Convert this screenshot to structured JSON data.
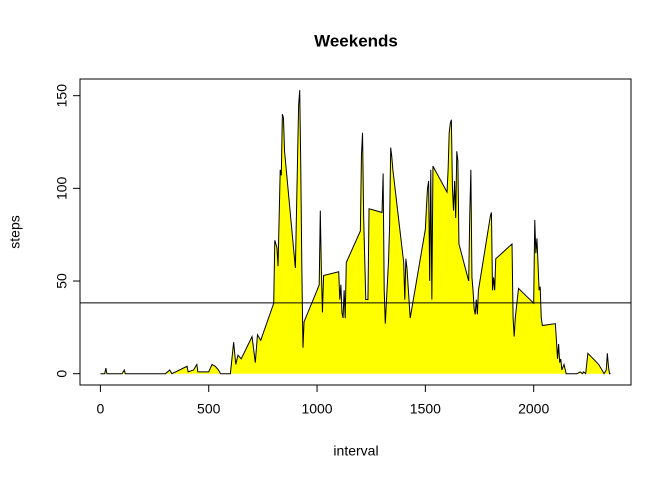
{
  "chart_data": {
    "type": "area",
    "title": "Weekends",
    "x_label": "interval",
    "y_label": "steps",
    "color": "#ffff00",
    "line_color": "#000000",
    "x": [
      0,
      5,
      10,
      15,
      20,
      25,
      30,
      100,
      105,
      110,
      115,
      200,
      300,
      320,
      330,
      400,
      405,
      430,
      445,
      450,
      500,
      515,
      530,
      545,
      555,
      600,
      615,
      625,
      635,
      650,
      700,
      715,
      725,
      740,
      800,
      805,
      815,
      820,
      830,
      835,
      840,
      845,
      850,
      900,
      915,
      920,
      925,
      930,
      935,
      940,
      1000,
      1010,
      1015,
      1020,
      1025,
      1030,
      1100,
      1105,
      1110,
      1115,
      1120,
      1125,
      1130,
      1135,
      1200,
      1205,
      1210,
      1215,
      1225,
      1235,
      1240,
      1300,
      1305,
      1310,
      1315,
      1330,
      1335,
      1340,
      1345,
      1350,
      1400,
      1405,
      1410,
      1415,
      1430,
      1500,
      1505,
      1510,
      1515,
      1520,
      1525,
      1530,
      1535,
      1600,
      1605,
      1610,
      1615,
      1620,
      1625,
      1630,
      1635,
      1640,
      1645,
      1650,
      1655,
      1700,
      1705,
      1710,
      1715,
      1720,
      1725,
      1730,
      1735,
      1740,
      1745,
      1800,
      1805,
      1810,
      1815,
      1820,
      1825,
      1900,
      1905,
      1910,
      1915,
      1930,
      2000,
      2005,
      2010,
      2015,
      2025,
      2030,
      2035,
      2040,
      2100,
      2105,
      2110,
      2115,
      2120,
      2125,
      2130,
      2140,
      2150,
      2200,
      2215,
      2225,
      2230,
      2240,
      2250,
      2300,
      2325,
      2335,
      2340,
      2345,
      2350,
      2355
    ],
    "values": [
      0,
      0,
      0,
      0,
      0,
      3,
      0,
      0,
      1,
      2,
      0,
      0,
      0,
      2,
      0,
      4,
      1,
      2,
      5,
      1,
      1,
      5,
      4,
      2,
      0,
      0,
      17,
      5,
      10,
      8,
      20,
      6,
      21,
      18,
      38,
      72,
      68,
      58,
      110,
      107,
      140,
      138,
      120,
      57,
      145,
      153,
      110,
      55,
      14,
      28,
      45,
      48,
      88,
      55,
      33,
      53,
      55,
      40,
      48,
      33,
      30,
      45,
      30,
      60,
      77,
      118,
      130,
      85,
      40,
      40,
      89,
      87,
      108,
      45,
      27,
      61,
      80,
      122,
      117,
      110,
      60,
      40,
      62,
      57,
      30,
      78,
      90,
      100,
      104,
      50,
      110,
      40,
      112,
      98,
      110,
      130,
      135,
      137,
      100,
      88,
      104,
      84,
      120,
      115,
      70,
      50,
      86,
      110,
      52,
      45,
      35,
      32,
      40,
      32,
      45,
      85,
      87,
      45,
      52,
      45,
      62,
      70,
      30,
      20,
      30,
      46,
      38,
      83,
      65,
      73,
      45,
      47,
      30,
      26,
      27,
      18,
      8,
      16,
      6,
      8,
      2,
      5,
      0,
      0,
      1,
      0,
      1,
      0,
      11,
      5,
      0,
      2,
      11,
      4,
      0,
      0
    ],
    "hline": 38.2,
    "xlim": [
      -94.2,
      2449.2
    ],
    "ylim": [
      -6.1,
      159.0
    ],
    "xticks": [
      0,
      500,
      1000,
      1500,
      2000
    ],
    "yticks": [
      0,
      50,
      100,
      150
    ]
  }
}
